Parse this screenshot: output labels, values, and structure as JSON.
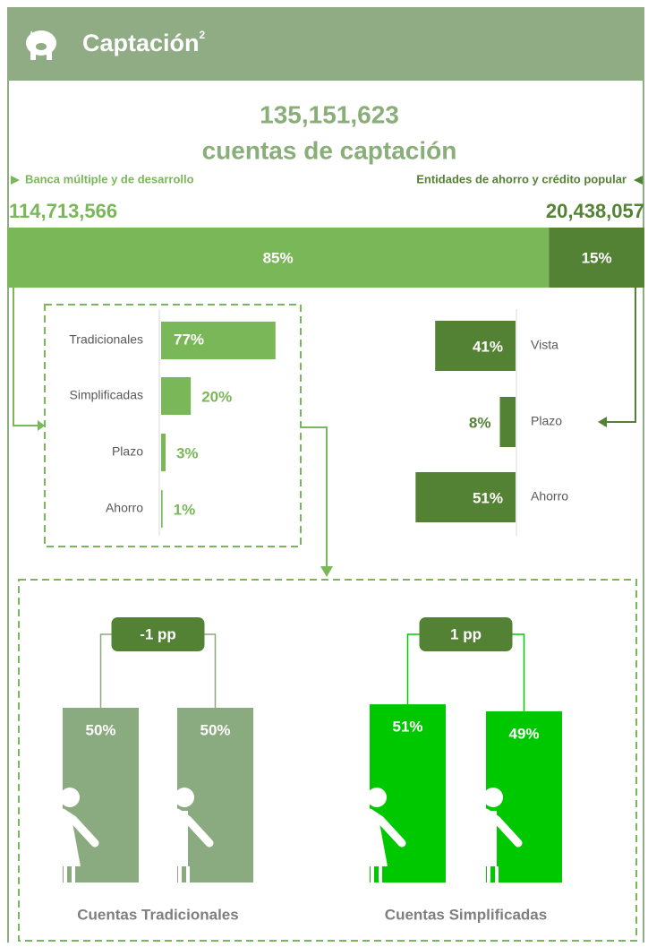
{
  "header": {
    "title": "Captación",
    "note": "2"
  },
  "total": {
    "value": "135,151,623",
    "label": "cuentas de captación"
  },
  "segments": [
    {
      "name": "Banca múltiple y de desarrollo",
      "amount": "114,713,566",
      "value": 85,
      "value_label": "85%",
      "color": "#7ab758"
    },
    {
      "name": "Entidades de ahorro y crédito popular",
      "amount": "20,438,057",
      "value": 15,
      "value_label": "15%",
      "color": "#548235"
    }
  ],
  "left_breakdown": {
    "categories": [
      "Tradicionales",
      "Simplificadas",
      "Plazo",
      "Ahorro"
    ],
    "values": [
      77,
      20,
      3,
      1
    ],
    "value_labels": [
      "77%",
      "20%",
      "3%",
      "1%"
    ],
    "color": "#7ab758"
  },
  "right_breakdown": {
    "categories": [
      "Vista",
      "Plazo",
      "Ahorro"
    ],
    "values": [
      41,
      8,
      51
    ],
    "value_labels": [
      "41%",
      "8%",
      "51%"
    ],
    "color": "#548235"
  },
  "gender": [
    {
      "name": "Cuentas Tradicionales",
      "change": "-1 pp",
      "values": [
        50,
        50
      ],
      "value_labels": [
        "50%",
        "50%"
      ],
      "color": "#8aaa7f"
    },
    {
      "name": "Cuentas Simplificadas",
      "change": "1 pp",
      "values": [
        51,
        49
      ],
      "value_labels": [
        "51%",
        "49%"
      ],
      "color": "#00c800"
    }
  ]
}
